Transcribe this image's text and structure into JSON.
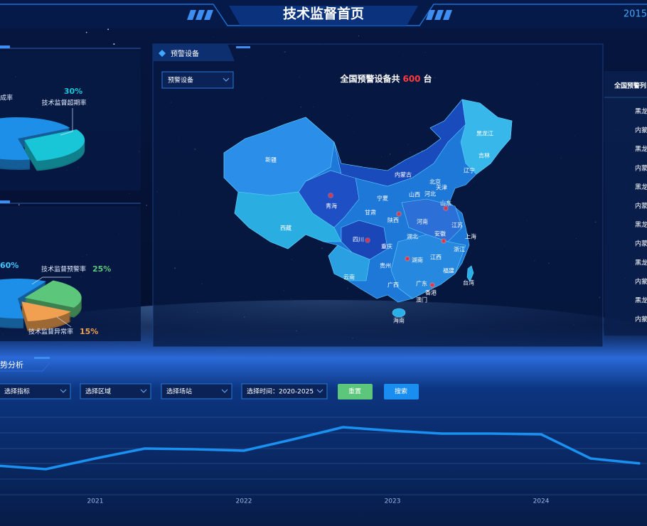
{
  "header": {
    "title": "技术监督首页",
    "date": "2015"
  },
  "chart_data": [
    {
      "type": "pie",
      "categories": [
        "成率",
        "技术监督超期率"
      ],
      "values": [
        70,
        30
      ],
      "value_labels": [
        null,
        "30%"
      ],
      "colors": [
        "#1e8fe8",
        "#19c6d8"
      ]
    },
    {
      "type": "pie",
      "categories": [
        null,
        "技术监督预警率",
        "技术监督异常率"
      ],
      "values": [
        60,
        25,
        15
      ],
      "value_labels": [
        "60%",
        "25%",
        "15%"
      ],
      "colors": [
        "#1e8fe8",
        "#5cc77a",
        "#f0a050"
      ]
    },
    {
      "type": "line",
      "title": "势分析",
      "categories": [
        null,
        null,
        "2021",
        null,
        null,
        "2022",
        null,
        null,
        "2023",
        null,
        null,
        "2024",
        null,
        null
      ],
      "series": [
        {
          "color": "#1a90f0",
          "values": [
            45,
            40,
            55,
            69,
            68,
            66,
            82,
            99,
            94,
            90,
            90,
            89,
            55,
            48
          ]
        }
      ],
      "ylim": [
        0,
        120
      ]
    }
  ],
  "warning_panel": {
    "title": "预警设备",
    "dropdown": "预警设备",
    "summary_prefix": "全国预警设备共",
    "summary_count": 600,
    "summary_unit": "台",
    "provinces": [
      "新疆",
      "西藏",
      "青海",
      "甘肃",
      "宁夏",
      "内蒙古",
      "黑龙江",
      "吉林",
      "辽宁",
      "北京",
      "天津",
      "河北",
      "山西",
      "山东",
      "陕西",
      "河南",
      "江苏",
      "安徽",
      "上海",
      "四川",
      "重庆",
      "湖北",
      "浙江",
      "贵州",
      "湖南",
      "江西",
      "云南",
      "广西",
      "广东",
      "福建",
      "台湾",
      "香港",
      "澳门",
      "海南"
    ]
  },
  "warning_list": {
    "title": "全国预警列",
    "items": [
      "黑龙",
      "内蒙",
      "黑龙",
      "内蒙",
      "黑龙",
      "内蒙",
      "黑龙",
      "内蒙",
      "黑龙",
      "内蒙",
      "黑龙",
      "内蒙"
    ]
  },
  "filters": {
    "indicator": "选择指标",
    "region": "选择区域",
    "station": "选择场站",
    "time": "选择时间：2020-2025",
    "reset": "重置",
    "search": "搜索"
  }
}
